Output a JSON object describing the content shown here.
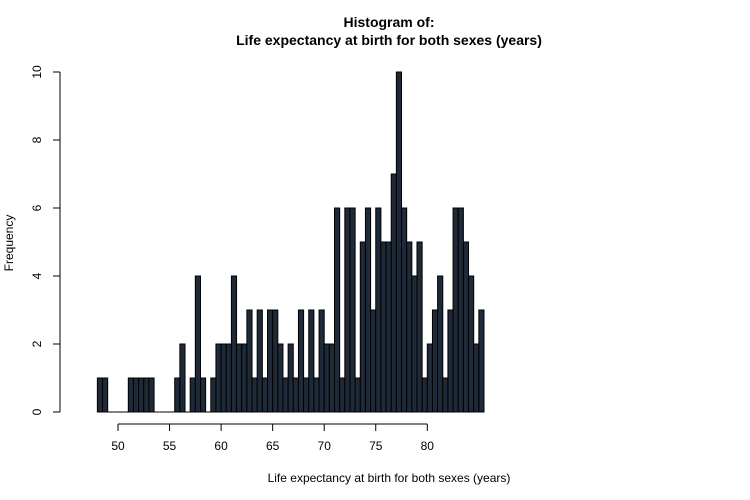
{
  "chart_data": {
    "type": "bar",
    "title_line1": "Histogram of:",
    "title_line2": "Life expectancy at birth for both sexes (years)",
    "xlabel": "Life expectancy at birth for both sexes (years)",
    "ylabel": "Frequency",
    "bin_start": 48.0,
    "bin_width": 0.5,
    "values": [
      1,
      1,
      0,
      0,
      0,
      0,
      1,
      1,
      1,
      1,
      1,
      0,
      0,
      0,
      0,
      1,
      2,
      0,
      1,
      4,
      1,
      0,
      1,
      2,
      2,
      2,
      4,
      2,
      2,
      3,
      1,
      3,
      1,
      3,
      3,
      2,
      1,
      2,
      1,
      3,
      1,
      3,
      1,
      3,
      2,
      2,
      6,
      1,
      6,
      6,
      1,
      5,
      6,
      3,
      6,
      5,
      5,
      7,
      10,
      6,
      5,
      4,
      5,
      1,
      2,
      3,
      4,
      1,
      3,
      6,
      6,
      5,
      4,
      2,
      3
    ],
    "xlim": [
      48,
      83.5
    ],
    "ylim": [
      0,
      10
    ],
    "x_ticks": [
      50,
      55,
      60,
      65,
      70,
      75,
      80
    ],
    "y_ticks": [
      0,
      2,
      4,
      6,
      8,
      10
    ],
    "bar_color": "#1f2a38",
    "bar_border_color": "#000000"
  }
}
